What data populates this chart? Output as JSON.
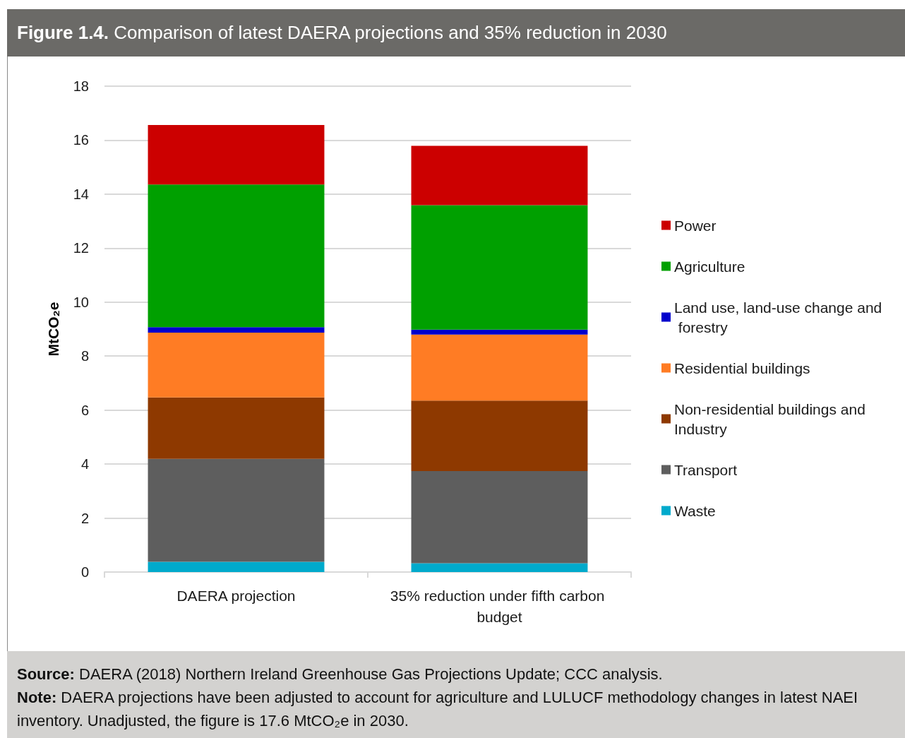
{
  "chart_data": {
    "type": "bar",
    "title": "Figure 1.4. Comparison of latest DAERA projections and 35% reduction in 2030",
    "ylabel": "MtCO₂e",
    "categories": [
      "DAERA projection",
      "35% reduction under fifth carbon budget"
    ],
    "stacked": true,
    "series": [
      {
        "name": "Waste",
        "color": "#00aacc",
        "values": [
          0.38,
          0.33
        ]
      },
      {
        "name": "Transport",
        "color": "#5e5e5e",
        "values": [
          3.81,
          3.41
        ]
      },
      {
        "name": "Non-residential buildings and Industry",
        "color": "#8e3900",
        "values": [
          2.28,
          2.61
        ]
      },
      {
        "name": "Residential buildings",
        "color": "#ff7c24",
        "values": [
          2.4,
          2.45
        ]
      },
      {
        "name": "Land use, land-use change and forestry",
        "color": "#0000cc",
        "values": [
          0.2,
          0.18
        ]
      },
      {
        "name": "Agriculture",
        "color": "#00a000",
        "values": [
          5.29,
          4.61
        ]
      },
      {
        "name": "Power",
        "color": "#cc0000",
        "values": [
          2.2,
          2.2
        ]
      }
    ],
    "ylim": [
      0,
      18
    ],
    "yticks": [
      0,
      2,
      4,
      6,
      8,
      10,
      12,
      14,
      16,
      18
    ],
    "grid": "y",
    "legend": "right",
    "annotations": [
      "Source: DAERA (2018) Northern Ireland Greenhouse Gas Projections Update; CCC analysis.",
      "Note: DAERA projections have been adjusted to account for agriculture and LULUCF methodology changes in latest NAEI inventory. Unadjusted, the figure is 17.6 MtCO₂e in 2030."
    ]
  }
}
